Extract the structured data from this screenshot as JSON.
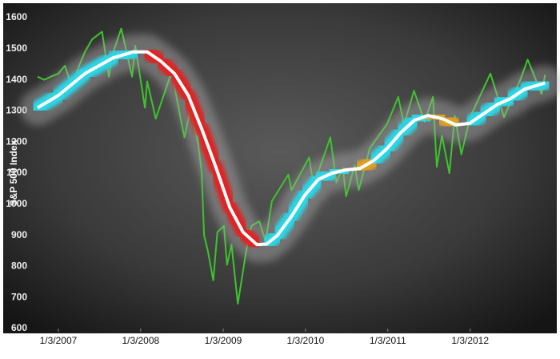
{
  "chart_data": {
    "type": "line",
    "y_label": "S&P 500 Index",
    "xlim": [
      "2006-09-01",
      "2012-12-31"
    ],
    "xticks": [
      {
        "value": "2007-01-03",
        "label": "1/3/2007"
      },
      {
        "value": "2008-01-03",
        "label": "1/3/2008"
      },
      {
        "value": "2009-01-03",
        "label": "1/3/2009"
      },
      {
        "value": "2010-01-03",
        "label": "1/3/2010"
      },
      {
        "value": "2011-01-03",
        "label": "1/3/2011"
      },
      {
        "value": "2012-01-03",
        "label": "1/3/2012"
      }
    ],
    "ylim": [
      600,
      1600
    ],
    "yticks": [
      600,
      700,
      800,
      900,
      1000,
      1100,
      1200,
      1300,
      1400,
      1500,
      1600
    ],
    "grid": false,
    "series": [
      {
        "color": "#3cc52c",
        "x": [
          "2006-10-03",
          "2006-11-01",
          "2006-12-01",
          "2007-01-03",
          "2007-02-01",
          "2007-03-05",
          "2007-04-02",
          "2007-05-01",
          "2007-06-01",
          "2007-07-16",
          "2007-08-15",
          "2007-09-04",
          "2007-10-09",
          "2007-11-26",
          "2007-12-10",
          "2008-01-22",
          "2008-02-01",
          "2008-03-10",
          "2008-05-19",
          "2008-06-27",
          "2008-07-15",
          "2008-08-11",
          "2008-09-15",
          "2008-09-29",
          "2008-10-10",
          "2008-10-27",
          "2008-11-20",
          "2008-12-08",
          "2009-01-06",
          "2009-01-20",
          "2009-02-09",
          "2009-03-09",
          "2009-04-15",
          "2009-05-08",
          "2009-06-12",
          "2009-07-10",
          "2009-08-07",
          "2009-10-19",
          "2009-11-02",
          "2010-01-19",
          "2010-02-08",
          "2010-04-23",
          "2010-05-20",
          "2010-06-18",
          "2010-07-02",
          "2010-08-09",
          "2010-08-27",
          "2010-10-15",
          "2010-12-31",
          "2011-02-18",
          "2011-03-16",
          "2011-04-29",
          "2011-06-15",
          "2011-07-22",
          "2011-08-08",
          "2011-08-31",
          "2011-10-03",
          "2011-10-27",
          "2011-11-25",
          "2012-01-03",
          "2012-04-02",
          "2012-06-01",
          "2012-08-15",
          "2012-09-14",
          "2012-11-15",
          "2012-11-30"
        ],
        "values": [
          1410,
          1400,
          1410,
          1420,
          1445,
          1375,
          1440,
          1490,
          1530,
          1555,
          1410,
          1490,
          1565,
          1410,
          1510,
          1310,
          1395,
          1275,
          1425,
          1280,
          1215,
          1305,
          1190,
          1105,
          900,
          850,
          755,
          910,
          930,
          805,
          870,
          680,
          850,
          930,
          945,
          880,
          1010,
          1095,
          1045,
          1150,
          1060,
          1215,
          1070,
          1115,
          1025,
          1125,
          1045,
          1180,
          1258,
          1345,
          1255,
          1365,
          1265,
          1345,
          1120,
          1220,
          1100,
          1285,
          1160,
          1280,
          1420,
          1280,
          1405,
          1465,
          1355,
          1416
        ]
      },
      {
        "color": "#ffffff",
        "glow_colors": [
          "#29d6e6",
          "#29d6e6",
          "#29d6e6",
          "#29d6e6",
          "#e0a020",
          "#e02020",
          "#e02020",
          "#e02020",
          "#e02020",
          "#e02020",
          "#e02020",
          "#e02020",
          "#e02020",
          "#e0a020",
          "#29d6e6",
          "#29d6e6",
          "#29d6e6",
          "#29d6e6",
          "#29d6e6",
          "#29d6e6",
          "#e0a020",
          "#e0a020",
          "#29d6e6",
          "#29d6e6",
          "#29d6e6",
          "#29d6e6",
          "#e0a020",
          "#e0a020",
          "#29d6e6",
          "#29d6e6",
          "#29d6e6",
          "#29d6e6",
          "#29d6e6",
          "#29d6e6",
          "#29d6e6"
        ],
        "x": [
          "2006-10-03",
          "2007-01-03",
          "2007-05-01",
          "2007-09-01",
          "2007-12-01",
          "2008-02-01",
          "2008-04-01",
          "2008-06-01",
          "2008-08-01",
          "2008-10-01",
          "2008-12-01",
          "2009-02-01",
          "2009-04-01",
          "2009-06-01",
          "2009-07-15",
          "2009-09-01",
          "2009-11-01",
          "2010-01-01",
          "2010-03-01",
          "2010-05-01",
          "2010-07-01",
          "2010-09-01",
          "2010-11-01",
          "2011-01-01",
          "2011-03-01",
          "2011-05-01",
          "2011-07-01",
          "2011-09-01",
          "2011-11-01",
          "2012-01-01",
          "2012-03-01",
          "2012-05-01",
          "2012-07-01",
          "2012-09-01",
          "2012-11-30"
        ],
        "values": [
          1310,
          1350,
          1420,
          1470,
          1490,
          1490,
          1460,
          1420,
          1350,
          1240,
          1120,
          990,
          910,
          870,
          872,
          900,
          960,
          1030,
          1080,
          1100,
          1110,
          1115,
          1140,
          1180,
          1230,
          1270,
          1285,
          1275,
          1255,
          1260,
          1290,
          1320,
          1340,
          1370,
          1390
        ]
      }
    ]
  }
}
